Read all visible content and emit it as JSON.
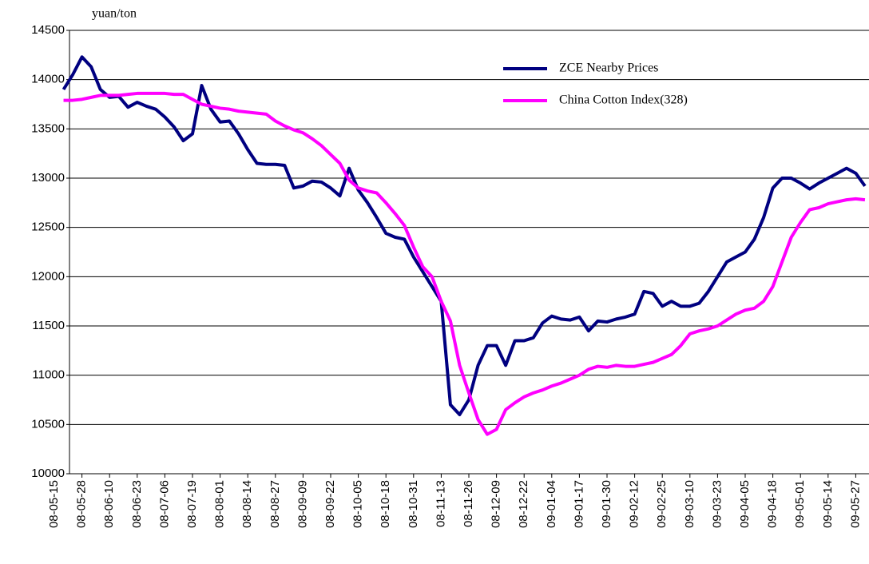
{
  "chart_data": {
    "type": "line",
    "y_label": "yuan/ton",
    "categories": [
      "08-05-15",
      null,
      null,
      "08-05-28",
      null,
      null,
      "08-06-10",
      null,
      null,
      "08-06-23",
      null,
      null,
      "08-07-06",
      null,
      null,
      "08-07-19",
      null,
      null,
      "08-08-01",
      null,
      null,
      "08-08-14",
      null,
      null,
      "08-08-27",
      null,
      null,
      "08-09-09",
      null,
      null,
      "08-09-22",
      null,
      null,
      "08-10-05",
      null,
      null,
      "08-10-18",
      null,
      null,
      "08-10-31",
      null,
      null,
      "08-11-13",
      null,
      null,
      "08-11-26",
      null,
      null,
      "08-12-09",
      null,
      null,
      "08-12-22",
      null,
      null,
      "09-01-04",
      null,
      null,
      "09-01-17",
      null,
      null,
      "09-01-30",
      null,
      null,
      "09-02-12",
      null,
      null,
      "09-02-25",
      null,
      null,
      "09-03-10",
      null,
      null,
      "09-03-23",
      null,
      null,
      "09-04-05",
      null,
      null,
      "09-04-18",
      null,
      null,
      "09-05-01",
      null,
      null,
      "09-05-14",
      null,
      null,
      "09-05-27",
      null
    ],
    "series": [
      {
        "name": "ZCE Nearby Prices",
        "color": "#000080",
        "values": [
          null,
          13900,
          14050,
          14230,
          14130,
          13900,
          13820,
          13830,
          13720,
          13770,
          13730,
          13700,
          13620,
          13520,
          13380,
          13450,
          13940,
          13700,
          13570,
          13580,
          13450,
          13290,
          13150,
          13140,
          13140,
          13130,
          12900,
          12920,
          12970,
          12960,
          12900,
          12820,
          13100,
          12880,
          12750,
          12600,
          12440,
          12400,
          12380,
          12200,
          12050,
          11900,
          11750,
          10700,
          10600,
          10750,
          11100,
          11300,
          11300,
          11100,
          11350,
          11350,
          11380,
          11530,
          11600,
          11570,
          11560,
          11590,
          11450,
          11550,
          11540,
          11570,
          11590,
          11620,
          11850,
          11830,
          11700,
          11750,
          11700,
          11700,
          11730,
          11850,
          12000,
          12150,
          12200,
          12250,
          12380,
          12600,
          12900,
          13000,
          13000,
          12950,
          12890,
          12950,
          13000,
          13050,
          13100,
          13050,
          12920
        ]
      },
      {
        "name": "China Cotton Index(328)",
        "color": "#ff00ff",
        "values": [
          null,
          13790,
          13790,
          13800,
          13820,
          13840,
          13840,
          13840,
          13850,
          13860,
          13860,
          13860,
          13860,
          13850,
          13850,
          13800,
          13750,
          13730,
          13710,
          13700,
          13680,
          13670,
          13660,
          13650,
          13580,
          13530,
          13490,
          13460,
          13400,
          13330,
          13240,
          13150,
          12980,
          12900,
          12870,
          12850,
          12750,
          12640,
          12520,
          12300,
          12100,
          12000,
          11750,
          11550,
          11100,
          10820,
          10550,
          10400,
          10450,
          10650,
          10720,
          10780,
          10820,
          10850,
          10890,
          10920,
          10960,
          11000,
          11060,
          11090,
          11080,
          11100,
          11090,
          11090,
          11110,
          11130,
          11170,
          11210,
          11300,
          11420,
          11450,
          11470,
          11500,
          11560,
          11620,
          11660,
          11680,
          11750,
          11900,
          12150,
          12400,
          12550,
          12680,
          12700,
          12740,
          12760,
          12780,
          12790,
          12780
        ]
      }
    ],
    "ylim": [
      10000,
      14500
    ],
    "yticks": [
      10000,
      10500,
      11000,
      11500,
      12000,
      12500,
      13000,
      13500,
      14000,
      14500
    ],
    "grid": true,
    "legend": "top-right"
  }
}
